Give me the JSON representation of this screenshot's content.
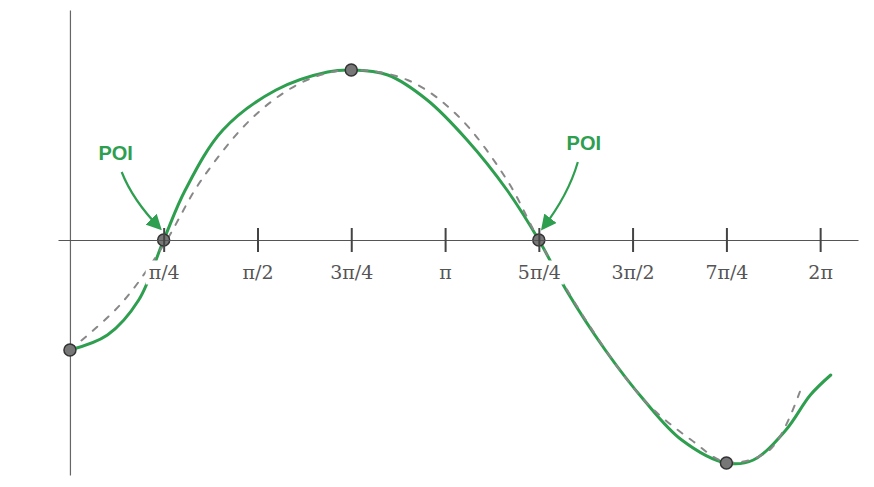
{
  "chart_data": {
    "type": "line",
    "xlim": [
      -0.1,
      6.6
    ],
    "ylim": [
      -2.35,
      2.3
    ],
    "xticks": [
      {
        "value": 0.785,
        "label": "π/4"
      },
      {
        "value": 1.571,
        "label": "π/2"
      },
      {
        "value": 2.356,
        "label": "3π/4"
      },
      {
        "value": 3.142,
        "label": "π"
      },
      {
        "value": 3.927,
        "label": "5π/4"
      },
      {
        "value": 4.712,
        "label": "3π/2"
      },
      {
        "value": 5.498,
        "label": "7π/4"
      },
      {
        "value": 6.283,
        "label": "2π"
      }
    ],
    "yticks": [],
    "tick_labels": "x",
    "grid": false,
    "series": [
      {
        "type": "line",
        "color": "#2e9e4f",
        "line_style": "solid",
        "x": [
          0,
          0.314,
          0.576,
          0.785,
          0.966,
          1.281,
          1.726,
          2.158,
          2.356,
          2.662,
          2.992,
          3.326,
          3.66,
          3.927,
          4.156,
          4.483,
          4.807,
          5.124,
          5.498,
          5.723,
          5.996,
          6.201,
          6.372
        ],
        "values": [
          -1.1,
          -0.95,
          -0.6,
          0,
          0.5,
          1.1,
          1.5,
          1.68,
          1.7,
          1.65,
          1.4,
          1.0,
          0.5,
          0,
          -0.5,
          -1.1,
          -1.6,
          -2.0,
          -2.23,
          -2.2,
          -1.9,
          -1.55,
          -1.35
        ]
      },
      {
        "type": "line",
        "color": "#888888",
        "line_style": "dashed",
        "x": [
          0,
          0.419,
          0.785,
          1.101,
          1.553,
          1.985,
          2.356,
          2.827,
          3.242,
          3.66,
          3.927,
          4.32,
          4.807,
          5.204,
          5.498,
          5.86,
          6.133
        ],
        "values": [
          -1.1,
          -0.65,
          -0.05,
          0.6,
          1.25,
          1.6,
          1.7,
          1.6,
          1.25,
          0.6,
          0,
          -0.8,
          -1.6,
          -2.0,
          -2.22,
          -2.1,
          -1.45
        ]
      },
      {
        "type": "scatter",
        "color": "#777777",
        "marker": "circle",
        "x": [
          0,
          0.785,
          2.356,
          3.927,
          5.498
        ],
        "values": [
          -1.1,
          0,
          1.7,
          0,
          -2.23
        ]
      }
    ],
    "annotations": [
      {
        "text": "POI",
        "x": 0.785,
        "y": 0
      },
      {
        "text": "POI",
        "x": 3.927,
        "y": 0
      }
    ]
  }
}
